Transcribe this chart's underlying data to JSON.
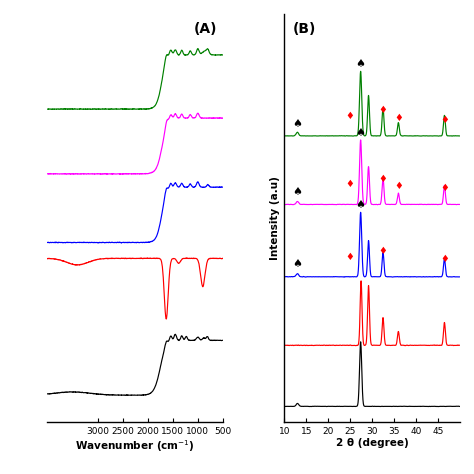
{
  "fig_width": 4.74,
  "fig_height": 4.74,
  "dpi": 100,
  "panel_A_label": "(A)",
  "panel_B_label": "(B)",
  "xlabel_A": "Wavenumber (cm$^{-1}$)",
  "ylabel_B": "Intensity (a.u)",
  "xlabel_B": "2 θ (degree)",
  "colors": [
    "black",
    "red",
    "blue",
    "magenta",
    "green"
  ],
  "ftir_offsets": [
    0.05,
    0.25,
    0.45,
    0.63,
    0.8
  ],
  "xrd_offsets": [
    0.02,
    0.18,
    0.36,
    0.55,
    0.73
  ],
  "ftir_scale": 0.16,
  "xrd_scale": 0.17,
  "background": "white"
}
